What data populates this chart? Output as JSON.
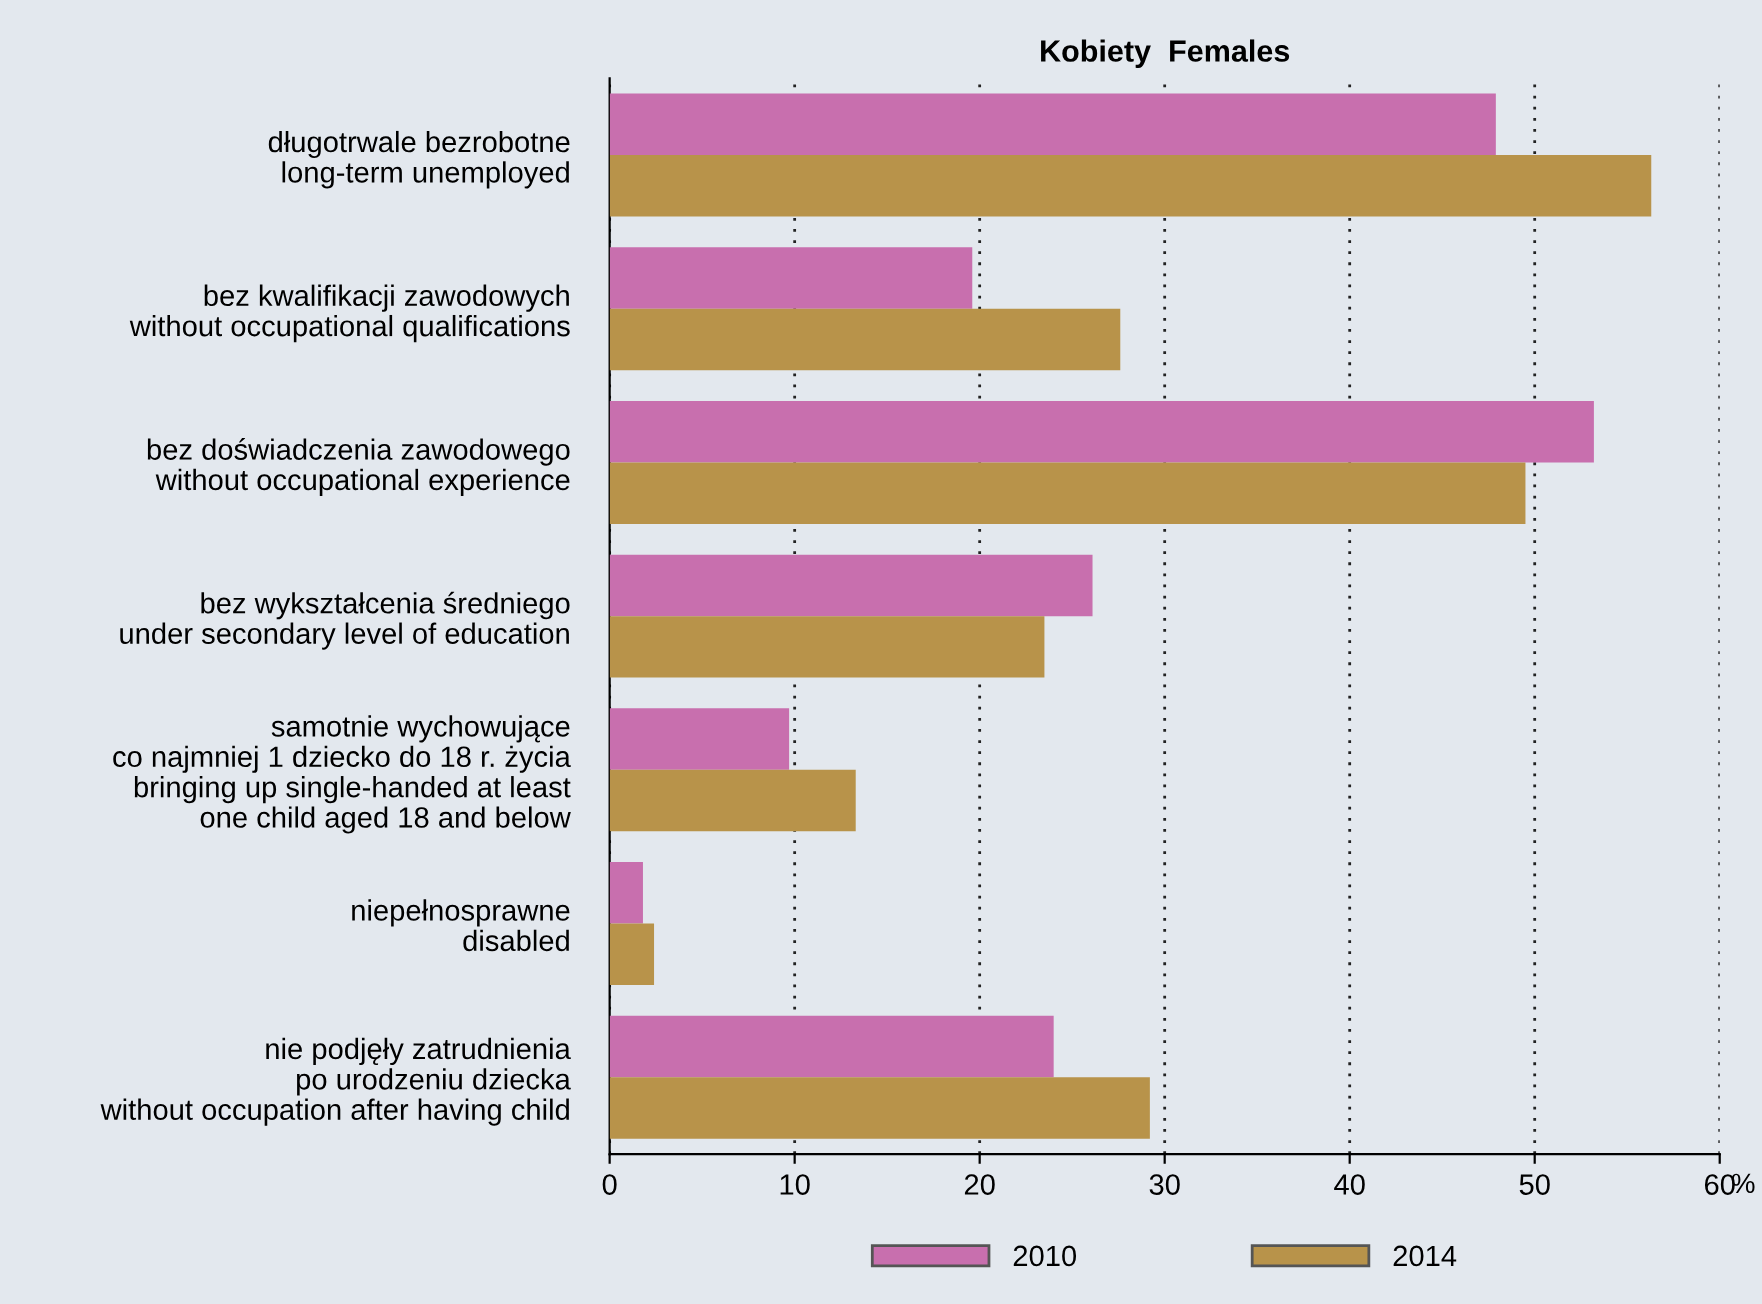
{
  "chart_data": {
    "type": "bar",
    "orientation": "horizontal",
    "title": "Kobiety  Females",
    "xlabel": "%",
    "categories": [
      "długotrwale bezrobotne\nlong-term unemployed",
      "bez kwalifikacji zawodowych\nwithout occupational qualifications",
      "bez doświadczenia zawodowego\nwithout occupational experience",
      "bez wykształcenia średniego\nunder secondary level of education",
      "samotnie wychowujące\nco najmniej 1 dziecko do 18 r. życia\nbringing up single-handed at least\none child aged 18 and below",
      "niepełnosprawne\ndisabled",
      "nie podjęły zatrudnienia\npo urodzeniu dziecka\nwithout occupation after having child"
    ],
    "series": [
      {
        "name": "2010",
        "color": "#c86fae",
        "values": [
          47.9,
          19.6,
          53.2,
          26.1,
          9.7,
          1.8,
          24.0
        ]
      },
      {
        "name": "2014",
        "color": "#b8934a",
        "values": [
          56.3,
          27.6,
          49.5,
          23.5,
          13.3,
          2.4,
          29.2
        ]
      }
    ],
    "xlim": [
      0,
      60
    ],
    "xticks": [
      0,
      10,
      20,
      30,
      40,
      50,
      60
    ],
    "grid": "x",
    "legend": "bottom"
  }
}
